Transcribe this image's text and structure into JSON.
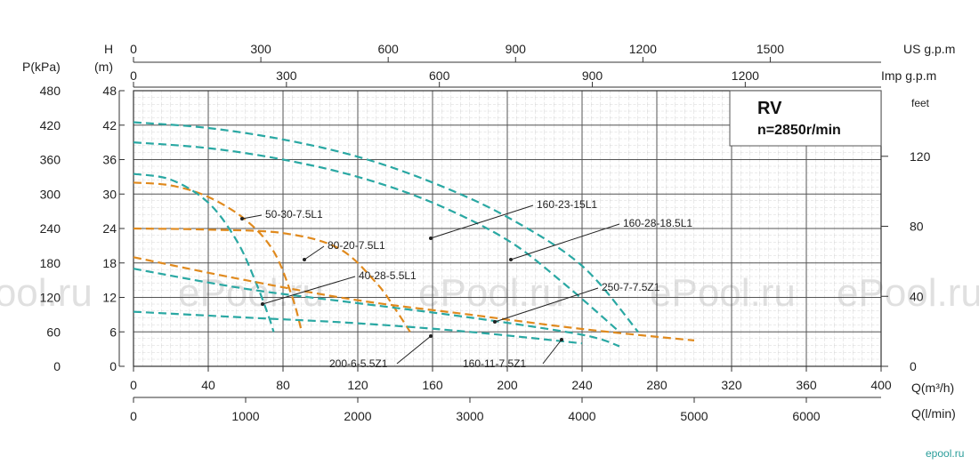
{
  "chart_data": {
    "type": "line",
    "info_box": {
      "title": "RV",
      "subtitle": "n=2850r/min"
    },
    "axes": {
      "q_m3h": {
        "label": "Q(m³/h)",
        "range": [
          0,
          400
        ],
        "ticks": [
          "0",
          "40",
          "80",
          "120",
          "160",
          "200",
          "240",
          "280",
          "320",
          "360",
          "400"
        ]
      },
      "q_lmin": {
        "label": "Q(l/min)",
        "ticks": [
          {
            "v": 0,
            "t": "0"
          },
          {
            "v": 1000,
            "t": "1000"
          },
          {
            "v": 2000,
            "t": "2000"
          },
          {
            "v": 3000,
            "t": "3000"
          },
          {
            "v": 4000,
            "t": "4000"
          },
          {
            "v": 5000,
            "t": "5000"
          },
          {
            "v": 6000,
            "t": "6000"
          }
        ]
      },
      "us_gpm": {
        "label": "US g.p.m",
        "ticks": [
          {
            "v": 0,
            "t": "0"
          },
          {
            "v": 300,
            "t": "300"
          },
          {
            "v": 600,
            "t": "600"
          },
          {
            "v": 900,
            "t": "900"
          },
          {
            "v": 1200,
            "t": "1200"
          },
          {
            "v": 1500,
            "t": "1500"
          }
        ]
      },
      "imp_gpm": {
        "label": "Imp g.p.m",
        "ticks": [
          {
            "v": 0,
            "t": "0"
          },
          {
            "v": 300,
            "t": "300"
          },
          {
            "v": 600,
            "t": "600"
          },
          {
            "v": 900,
            "t": "900"
          },
          {
            "v": 1200,
            "t": "1200"
          }
        ]
      },
      "head_m": {
        "label_line1": "H",
        "label_line2": "(m)",
        "range": [
          0,
          48
        ],
        "ticks": [
          "0",
          "6",
          "12",
          "18",
          "24",
          "30",
          "36",
          "42",
          "48"
        ]
      },
      "pressure_kpa": {
        "label": "P(kPa)",
        "ticks": [
          "0",
          "60",
          "120",
          "180",
          "240",
          "300",
          "360",
          "420",
          "480"
        ]
      },
      "head_ft": {
        "label": "feet",
        "ticks": [
          {
            "v": 0,
            "t": "0"
          },
          {
            "v": 40,
            "t": "40"
          },
          {
            "v": 80,
            "t": "80"
          },
          {
            "v": 120,
            "t": "120"
          }
        ]
      }
    },
    "series": [
      {
        "name": "50-30-7.5L1",
        "color": "#e08a1e",
        "points": [
          [
            0,
            32
          ],
          [
            20,
            31.5
          ],
          [
            40,
            29.5
          ],
          [
            60,
            25.5
          ],
          [
            75,
            20
          ],
          [
            85,
            12
          ],
          [
            90,
            6
          ]
        ]
      },
      {
        "name": "80-20-7.5L1",
        "color": "#e08a1e",
        "points": [
          [
            0,
            24
          ],
          [
            40,
            23.8
          ],
          [
            80,
            23.2
          ],
          [
            110,
            20.5
          ],
          [
            130,
            14.5
          ],
          [
            140,
            10
          ],
          [
            148,
            6
          ]
        ]
      },
      {
        "name": "40-28-5.5L1",
        "color": "#2aa8a3",
        "points": [
          [
            0,
            33.5
          ],
          [
            20,
            32.5
          ],
          [
            40,
            28.5
          ],
          [
            55,
            22
          ],
          [
            65,
            15
          ],
          [
            72,
            9
          ],
          [
            75,
            6
          ]
        ]
      },
      {
        "name": "160-23-15L1",
        "color": "#2aa8a3",
        "points": [
          [
            0,
            39
          ],
          [
            40,
            38
          ],
          [
            80,
            36
          ],
          [
            120,
            33
          ],
          [
            160,
            28.5
          ],
          [
            200,
            22
          ],
          [
            230,
            14.5
          ],
          [
            260,
            6
          ]
        ]
      },
      {
        "name": "160-28-18.5L1",
        "color": "#2aa8a3",
        "points": [
          [
            0,
            42.5
          ],
          [
            40,
            41.5
          ],
          [
            80,
            39.5
          ],
          [
            120,
            36.5
          ],
          [
            160,
            32
          ],
          [
            200,
            26
          ],
          [
            240,
            17.5
          ],
          [
            270,
            6
          ]
        ]
      },
      {
        "name": "250-7-7.5Z1",
        "color": "#e08a1e",
        "points": [
          [
            0,
            19
          ],
          [
            60,
            15
          ],
          [
            120,
            11.5
          ],
          [
            180,
            9
          ],
          [
            240,
            6.5
          ],
          [
            300,
            4.5
          ]
        ]
      },
      {
        "name": "200-6-5.5Z1",
        "color": "#2aa8a3",
        "points": [
          [
            0,
            17
          ],
          [
            60,
            13.5
          ],
          [
            120,
            11
          ],
          [
            180,
            8.5
          ],
          [
            240,
            5.5
          ],
          [
            260,
            3.5
          ]
        ]
      },
      {
        "name": "160-11-7.5Z1",
        "color": "#2aa8a3",
        "points": [
          [
            0,
            9.5
          ],
          [
            60,
            8.5
          ],
          [
            120,
            7.5
          ],
          [
            180,
            6
          ],
          [
            240,
            4
          ]
        ]
      }
    ],
    "watermark": "ePool.ru",
    "logo": "epool.ru"
  }
}
